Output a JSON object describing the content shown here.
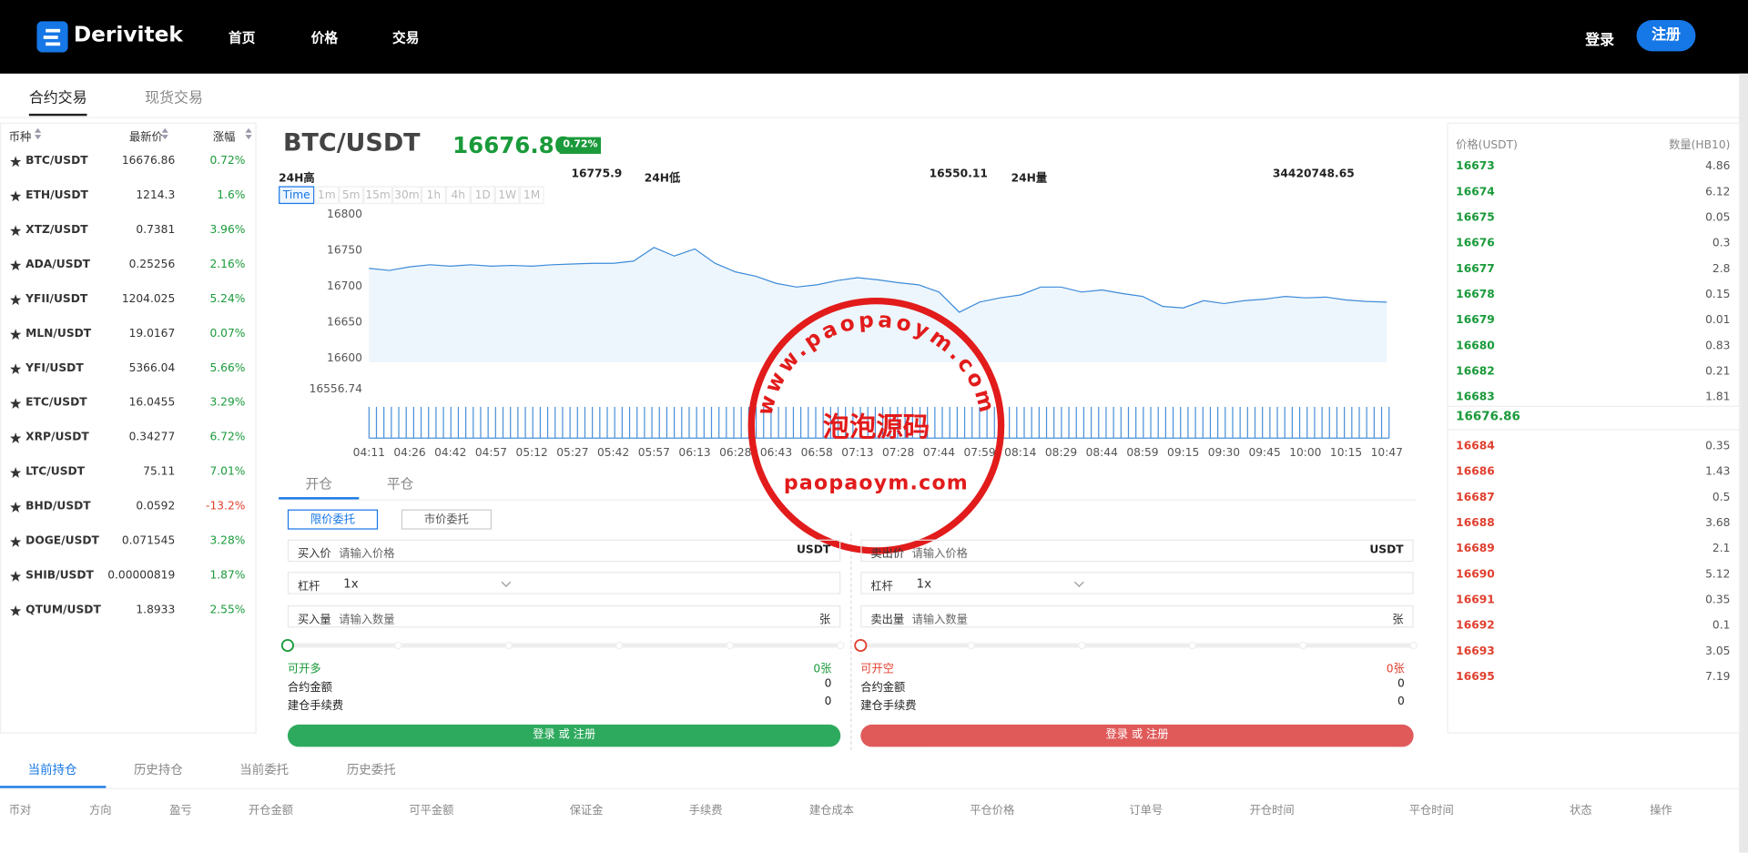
{
  "header": {
    "logo": "Derivitek",
    "nav": [
      "首页",
      "价格",
      "交易"
    ],
    "login": "登录",
    "register": "注册"
  },
  "tabs": [
    "合约交易",
    "现货交易"
  ],
  "market": {
    "columns": [
      "币种",
      "最新价",
      "涨幅"
    ],
    "rows": [
      [
        "BTC/USDT",
        "16676.86",
        "0.72%"
      ],
      [
        "ETH/USDT",
        "1214.3",
        "1.6%"
      ],
      [
        "XTZ/USDT",
        "0.7381",
        "3.96%"
      ],
      [
        "ADA/USDT",
        "0.25256",
        "2.16%"
      ],
      [
        "YFII/USDT",
        "1204.025",
        "5.24%"
      ],
      [
        "MLN/USDT",
        "19.0167",
        "0.07%"
      ],
      [
        "YFI/USDT",
        "5366.04",
        "5.66%"
      ],
      [
        "ETC/USDT",
        "16.0455",
        "3.29%"
      ],
      [
        "XRP/USDT",
        "0.34277",
        "6.72%"
      ],
      [
        "LTC/USDT",
        "75.11",
        "7.01%"
      ],
      [
        "BHD/USDT",
        "0.0592",
        "-13.2%"
      ],
      [
        "DOGE/USDT",
        "0.071545",
        "3.28%"
      ],
      [
        "SHIB/USDT",
        "0.00000819",
        "1.87%"
      ],
      [
        "QTUM/USDT",
        "1.8933",
        "2.55%"
      ]
    ]
  },
  "ticker": {
    "pair": "BTC/USDT",
    "price": "16676.86",
    "change": "0.72%",
    "stats": [
      {
        "label": "24H高",
        "value": "16775.9"
      },
      {
        "label": "24H低",
        "value": "16550.11"
      },
      {
        "label": "24H量",
        "value": "34420748.65"
      }
    ]
  },
  "intervals": [
    "Time",
    "1m",
    "5m",
    "15m",
    "30m",
    "1h",
    "4h",
    "1D",
    "1W",
    "1M"
  ],
  "chart_data": {
    "type": "line",
    "color": "#3d8bd9",
    "x": [
      "04:11",
      null,
      "04:26",
      null,
      "04:42",
      null,
      "04:57",
      null,
      "05:12",
      null,
      "05:27",
      null,
      "05:42",
      null,
      "05:57",
      null,
      "06:13",
      null,
      "06:28",
      null,
      "06:43",
      null,
      "06:58",
      null,
      "07:13",
      null,
      "07:28",
      null,
      "07:44",
      null,
      "07:59",
      null,
      "08:14",
      null,
      "08:29",
      null,
      "08:44",
      null,
      "08:59",
      null,
      "09:15",
      null,
      "09:30",
      null,
      "09:45",
      null,
      "10:00",
      null,
      "10:15",
      null,
      "10:47"
    ],
    "values": [
      16723,
      16720,
      16725,
      16728,
      16726,
      16728,
      16726,
      16727,
      16726,
      16728,
      16729,
      16730,
      16730,
      16733,
      16752,
      16740,
      16750,
      16730,
      16718,
      16712,
      16702,
      16697,
      16700,
      16706,
      16710,
      16707,
      16703,
      16700,
      16690,
      16662,
      16676,
      16682,
      16686,
      16697,
      16697,
      16690,
      16693,
      16688,
      16684,
      16670,
      16668,
      16678,
      16674,
      16678,
      16680,
      16684,
      16682,
      16683,
      16679,
      16677,
      16676
    ],
    "ylim": [
      16556.74,
      16800
    ],
    "yticks": [
      16556.74,
      16600,
      16650,
      16700,
      16750,
      16800
    ]
  },
  "order_book": {
    "columns": [
      "价格(USDT)",
      "数量(HB10)"
    ],
    "buys": [
      [
        "16673",
        "4.86"
      ],
      [
        "16674",
        "6.12"
      ],
      [
        "16675",
        "0.05"
      ],
      [
        "16676",
        "0.3"
      ],
      [
        "16677",
        "2.8"
      ],
      [
        "16678",
        "0.15"
      ],
      [
        "16679",
        "0.01"
      ],
      [
        "16680",
        "0.83"
      ],
      [
        "16682",
        "0.21"
      ],
      [
        "16683",
        "1.81"
      ]
    ],
    "last": "16676.86",
    "sells": [
      [
        "16684",
        "0.35"
      ],
      [
        "16686",
        "1.43"
      ],
      [
        "16687",
        "0.5"
      ],
      [
        "16688",
        "3.68"
      ],
      [
        "16689",
        "2.1"
      ],
      [
        "16690",
        "5.12"
      ],
      [
        "16691",
        "0.35"
      ],
      [
        "16692",
        "0.1"
      ],
      [
        "16693",
        "3.05"
      ],
      [
        "16695",
        "7.19"
      ]
    ]
  },
  "trade": {
    "tabs": [
      "开仓",
      "平仓"
    ],
    "order_types": [
      "限价委托",
      "市价委托"
    ],
    "buy": {
      "price_label": "买入价",
      "price_placeholder": "请输入价格",
      "unit": "USDT",
      "leverage_label": "杠杆",
      "leverage": "1x",
      "amount_label": "买入量",
      "amount_placeholder": "请输入数量",
      "amount_unit": "张",
      "available_label": "可开多",
      "available": "0张",
      "contract_label": "合约金额",
      "contract": "0",
      "fee_label": "建仓手续费",
      "fee": "0",
      "button": "登录 或 注册"
    },
    "sell": {
      "price_label": "卖出价",
      "price_placeholder": "请输入价格",
      "unit": "USDT",
      "leverage_label": "杠杆",
      "leverage": "1x",
      "amount_label": "卖出量",
      "amount_placeholder": "请输入数量",
      "amount_unit": "张",
      "available_label": "可开空",
      "available": "0张",
      "contract_label": "合约金额",
      "contract": "0",
      "fee_label": "建仓手续费",
      "fee": "0",
      "button": "登录 或 注册"
    }
  },
  "positions": {
    "tabs": [
      "当前持仓",
      "历史持仓",
      "当前委托",
      "历史委托"
    ],
    "columns": [
      "币对",
      "方向",
      "盈亏",
      "开仓金额",
      "可平金额",
      "保证金",
      "手续费",
      "建仓成本",
      "平仓价格",
      "订单号",
      "开仓时间",
      "平仓时间",
      "状态",
      "操作"
    ]
  },
  "watermark": {
    "arc": "www.paopaoym.com",
    "title": "泡泡源码",
    "domain": "paopaoym.com"
  }
}
